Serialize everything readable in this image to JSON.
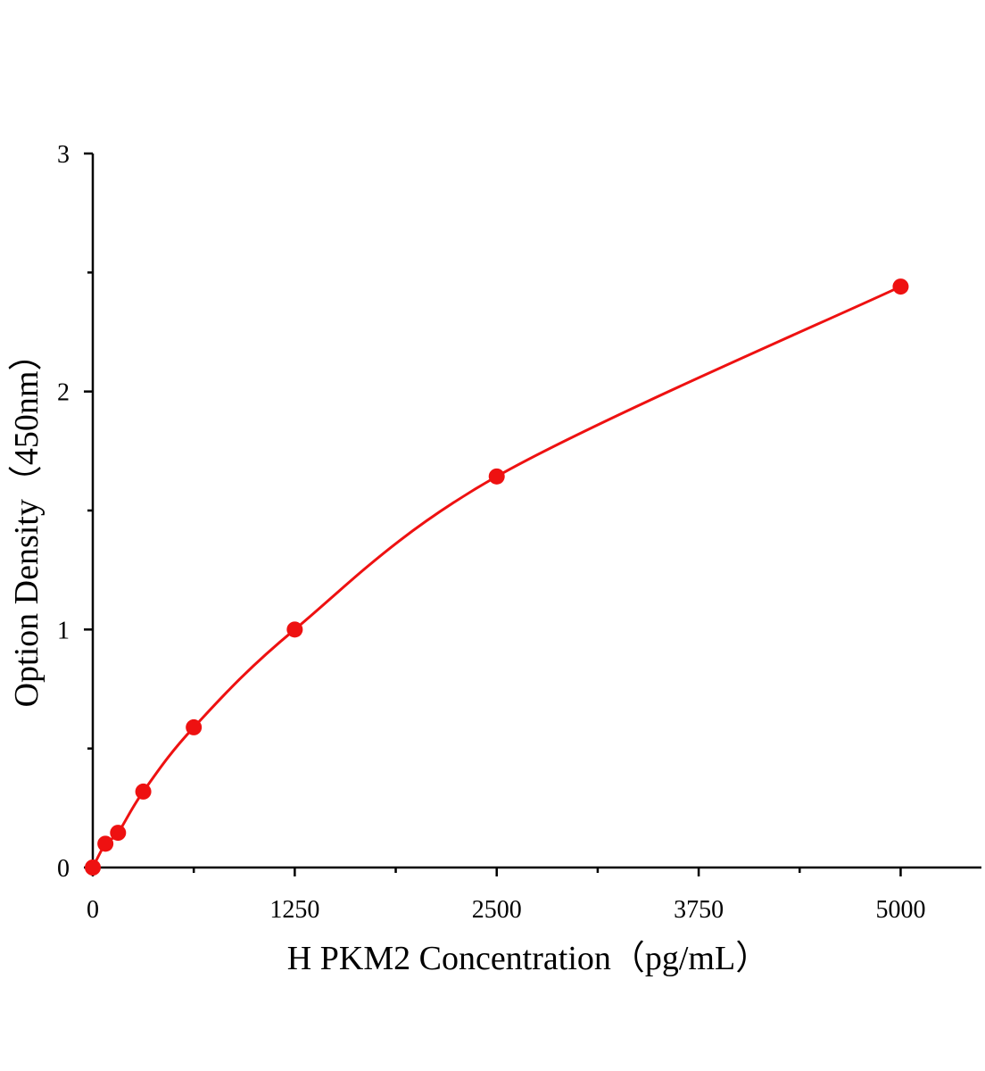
{
  "chart_data": {
    "type": "scatter",
    "x_label": "H PKM2 Concentration（pg/mL）",
    "y_label": "Option Density（450nm）",
    "series": [
      {
        "color": "#ee1111",
        "x": [
          0,
          78.125,
          156.25,
          312.5,
          625,
          1250,
          2500,
          5000
        ],
        "values": [
          0,
          0.1,
          0.146,
          0.319,
          0.589,
          1.0,
          1.643,
          2.441
        ]
      }
    ],
    "xlim": [
      0,
      5500
    ],
    "xticks": [
      0,
      1250,
      2500,
      3750,
      5000
    ],
    "ylim": [
      0,
      3
    ],
    "yticks": [
      0,
      1,
      2,
      3
    ],
    "fit_line": true
  }
}
